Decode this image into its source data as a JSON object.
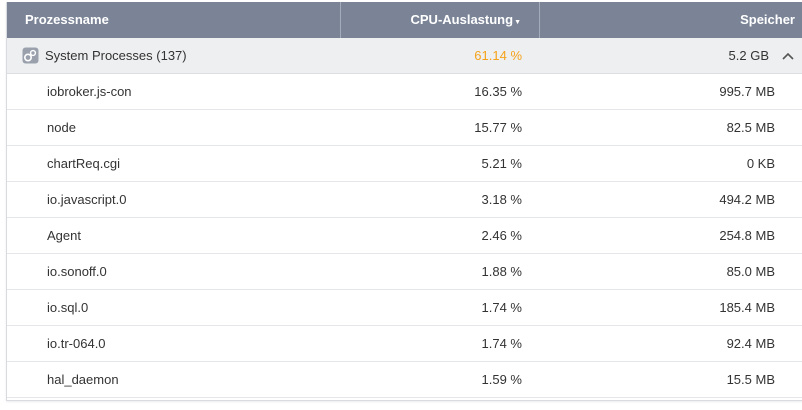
{
  "columns": {
    "name": "Prozessname",
    "cpu": "CPU-Auslastung",
    "memory": "Speicher"
  },
  "sort": {
    "column": "cpu",
    "direction": "descending",
    "icon": "sort-down-icon"
  },
  "group": {
    "label": "System Processes (137)",
    "cpu": "61.14 %",
    "memory": "5.2 GB",
    "icon": "process-group-icon",
    "expanded": true,
    "toggle_icon": "chevron-up-icon"
  },
  "processes": [
    {
      "name": "iobroker.js-con",
      "cpu": "16.35 %",
      "memory": "995.7 MB"
    },
    {
      "name": "node",
      "cpu": "15.77 %",
      "memory": "82.5 MB"
    },
    {
      "name": "chartReq.cgi",
      "cpu": "5.21 %",
      "memory": "0 KB"
    },
    {
      "name": "io.javascript.0",
      "cpu": "3.18 %",
      "memory": "494.2 MB"
    },
    {
      "name": "Agent",
      "cpu": "2.46 %",
      "memory": "254.8 MB"
    },
    {
      "name": "io.sonoff.0",
      "cpu": "1.88 %",
      "memory": "85.0 MB"
    },
    {
      "name": "io.sql.0",
      "cpu": "1.74 %",
      "memory": "185.4 MB"
    },
    {
      "name": "io.tr-064.0",
      "cpu": "1.74 %",
      "memory": "92.4 MB"
    },
    {
      "name": "hal_daemon",
      "cpu": "1.59 %",
      "memory": "15.5 MB"
    }
  ],
  "colors": {
    "header_bg": "#7b8497",
    "group_bg": "#eeeff1",
    "group_cpu": "#f5a31a",
    "text": "#333333"
  }
}
